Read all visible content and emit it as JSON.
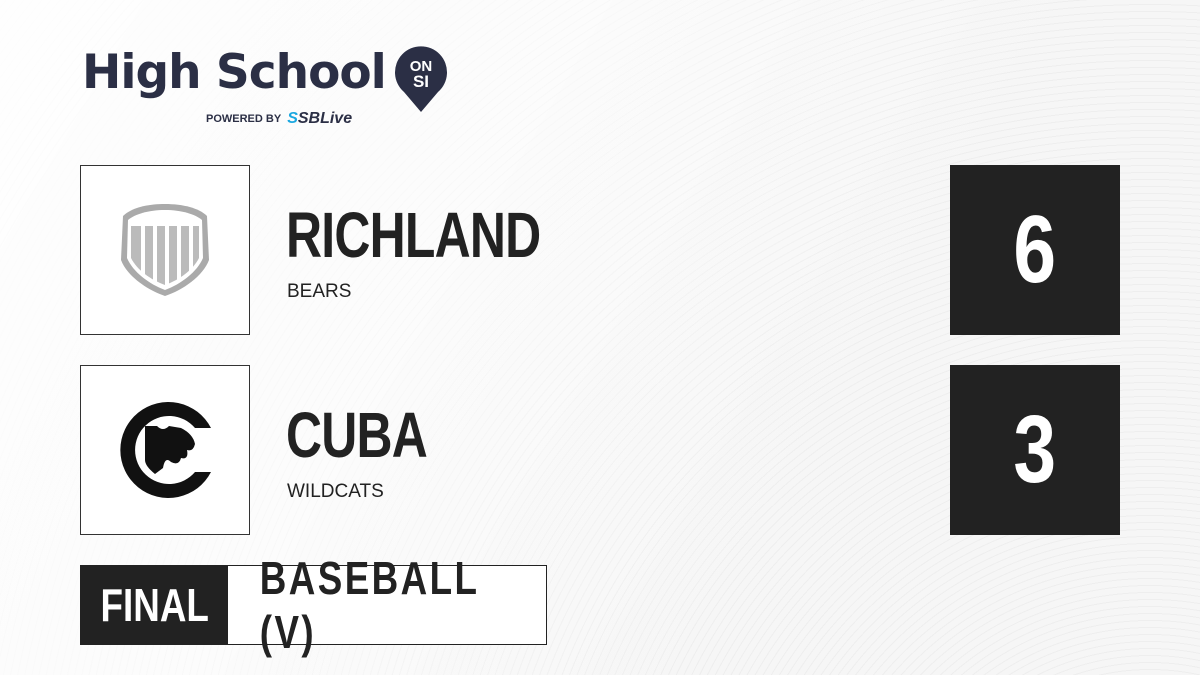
{
  "brand": {
    "title": "High School",
    "badge_top": "ON",
    "badge_bottom": "SI",
    "powered_by": "POWERED BY",
    "partner_prefix": "S",
    "partner": "SBLive"
  },
  "teams": [
    {
      "name": "RICHLAND",
      "mascot": "BEARS",
      "score": "6",
      "logo": "shield-placeholder-icon"
    },
    {
      "name": "CUBA",
      "mascot": "WILDCATS",
      "score": "3",
      "logo": "wildcat-c-icon"
    }
  ],
  "status": {
    "label": "FINAL",
    "sport": "BASEBALL (V)"
  },
  "colors": {
    "dark": "#222222",
    "brand_navy": "#2b2f45",
    "sblive_blue": "#1aa7e0"
  }
}
